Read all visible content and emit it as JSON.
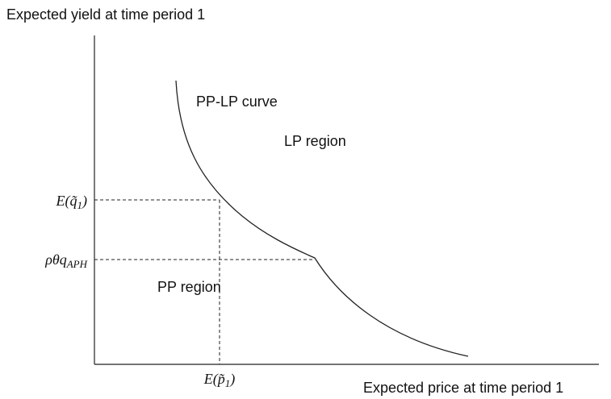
{
  "y_axis_label": "Expected yield at time period 1",
  "x_axis_label": "Expected price at time period 1",
  "curve_label": "PP-LP curve",
  "regions": [
    "LP region",
    "PP region"
  ],
  "y_marks": [
    {
      "main": "E(q̃",
      "sub": "1",
      "end": ")"
    },
    {
      "main": "ρθq",
      "sub": "APH",
      "end": ""
    }
  ],
  "x_marks": [
    {
      "main": "E(p̃",
      "sub": "1",
      "end": ")"
    }
  ]
}
